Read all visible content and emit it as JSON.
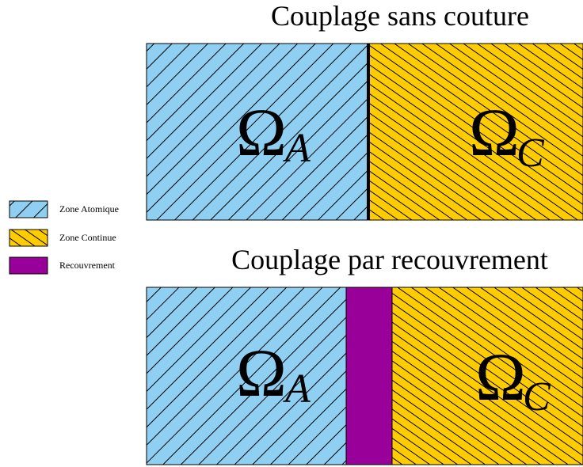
{
  "diagrams": [
    {
      "title": "Couplage sans couture",
      "regions": [
        {
          "symbol": "Ω",
          "subscript": "A"
        },
        {
          "symbol": "Ω",
          "subscript": "C"
        }
      ]
    },
    {
      "title": "Couplage par recouvrement",
      "regions": [
        {
          "symbol": "Ω",
          "subscript": "A"
        },
        {
          "symbol": "Ω",
          "subscript": "C"
        }
      ]
    }
  ],
  "legend": [
    {
      "label": "Zone Atomique"
    },
    {
      "label": "Zone Continue"
    },
    {
      "label": "Recouvrement"
    }
  ]
}
